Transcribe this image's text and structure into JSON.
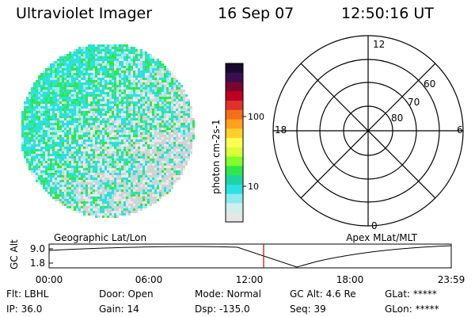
{
  "header": {
    "title": "Ultraviolet Imager",
    "date": "16 Sep 07",
    "time": "12:50:16 UT"
  },
  "colorbar": {
    "label": "photon cm-2s-1",
    "tick_labels": [
      "100",
      "10"
    ],
    "colors": [
      "#1a0a2e",
      "#3b0f4f",
      "#7a0630",
      "#bd0022",
      "#e0322a",
      "#f3701a",
      "#ffa01e",
      "#ffd02a",
      "#ffff52",
      "#d8ff3a",
      "#80ff2a",
      "#2ee84a",
      "#1fd4a2",
      "#2de0e0",
      "#8ceaea",
      "#cfeeee",
      "#e6e6e6"
    ]
  },
  "polar": {
    "labels": [
      "12",
      "60",
      "70",
      "80",
      "18",
      "6",
      "0"
    ]
  },
  "altitude_plot": {
    "left_label": "Geographic Lat/Lon",
    "right_label": "Apex MLat/MLT",
    "y_axis_label": "GC Alt",
    "y_ticks": [
      "9.0",
      "1.8"
    ],
    "x_ticks": [
      "00:00",
      "06:00",
      "12:00",
      "18:00",
      "23:59"
    ],
    "marker_color": "#cc0000"
  },
  "info": {
    "flt": "Flt: LBHL",
    "ip": "IP: 36.0",
    "door": "Door: Open",
    "gain": "Gain: 14",
    "mode": "Mode: Normal",
    "dsp": "Dsp: -135.0",
    "gc_alt": "GC Alt: 4.6 Re",
    "seq": "Seq: 39",
    "glat": "GLat: *****",
    "glon": "GLon: *****"
  },
  "image_colors": {
    "green": "#2ee84a",
    "cyan": "#2de0e0",
    "pale_cyan": "#a0ecec",
    "grey": "#d2d2d2",
    "light_grey": "#e9e9e9"
  }
}
